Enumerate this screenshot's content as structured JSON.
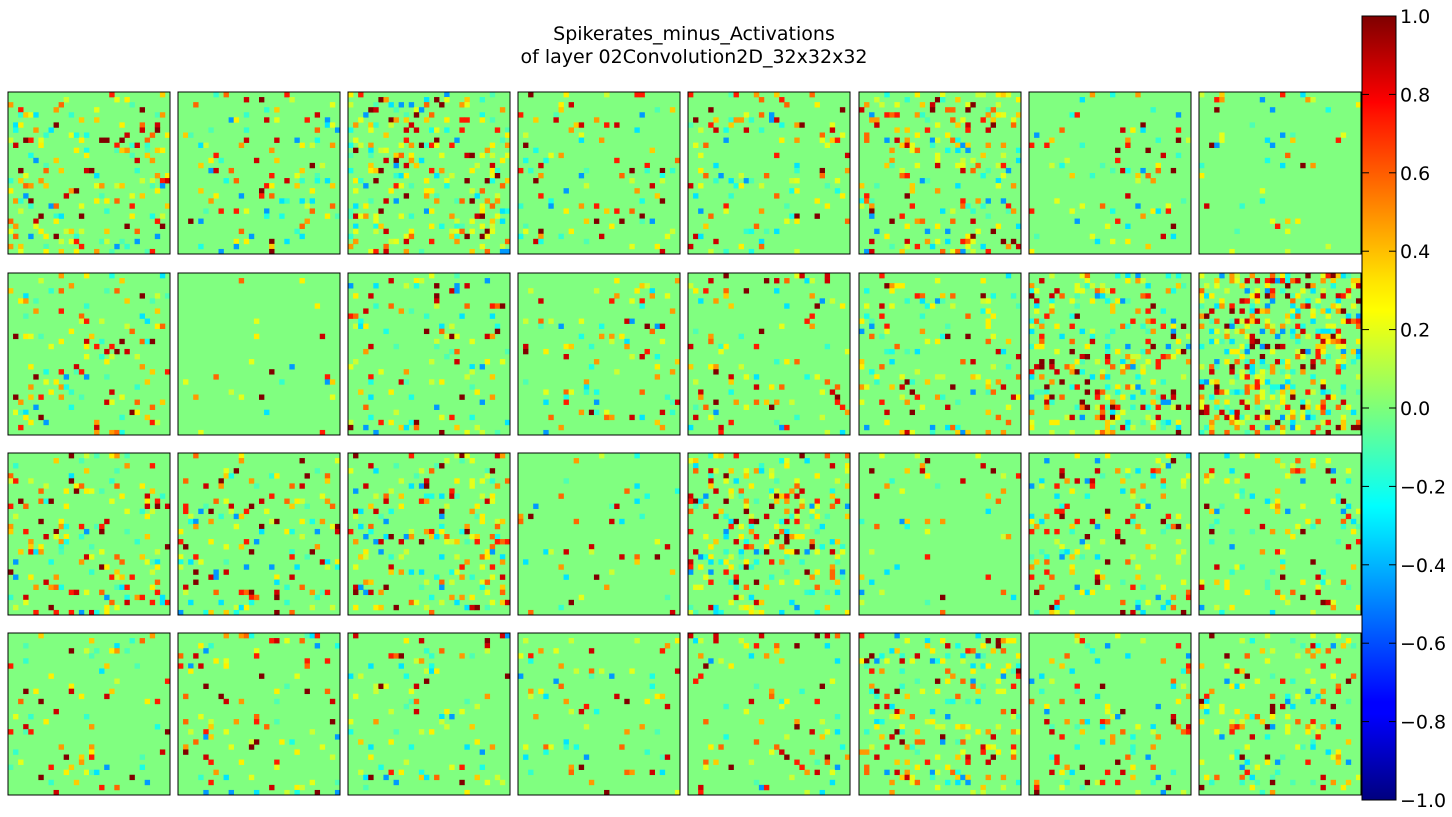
{
  "chart_data": {
    "type": "heatmap",
    "title_line1": "Spikerates_minus_Activations",
    "title_line2": "of layer 02Convolution2D_32x32x32",
    "grid_rows": 4,
    "grid_cols": 8,
    "cells_per_map": 32,
    "colormap": "jet",
    "color_range": [
      -1.0,
      1.0
    ],
    "colorbar_ticks": [
      "1.0",
      "0.8",
      "0.6",
      "0.4",
      "0.2",
      "0.0",
      "−0.2",
      "−0.4",
      "−0.6",
      "−0.8",
      "−1.0"
    ],
    "colorbar_tick_values": [
      1.0,
      0.8,
      0.6,
      0.4,
      0.2,
      0.0,
      -0.2,
      -0.4,
      -0.6,
      -0.8,
      -1.0
    ],
    "background_value": 0.0,
    "map_density": [
      0.16,
      0.1,
      0.22,
      0.07,
      0.1,
      0.2,
      0.06,
      0.04,
      0.12,
      0.02,
      0.1,
      0.09,
      0.1,
      0.12,
      0.26,
      0.38,
      0.14,
      0.14,
      0.16,
      0.05,
      0.2,
      0.05,
      0.16,
      0.12,
      0.06,
      0.08,
      0.08,
      0.07,
      0.09,
      0.16,
      0.12,
      0.14
    ]
  }
}
